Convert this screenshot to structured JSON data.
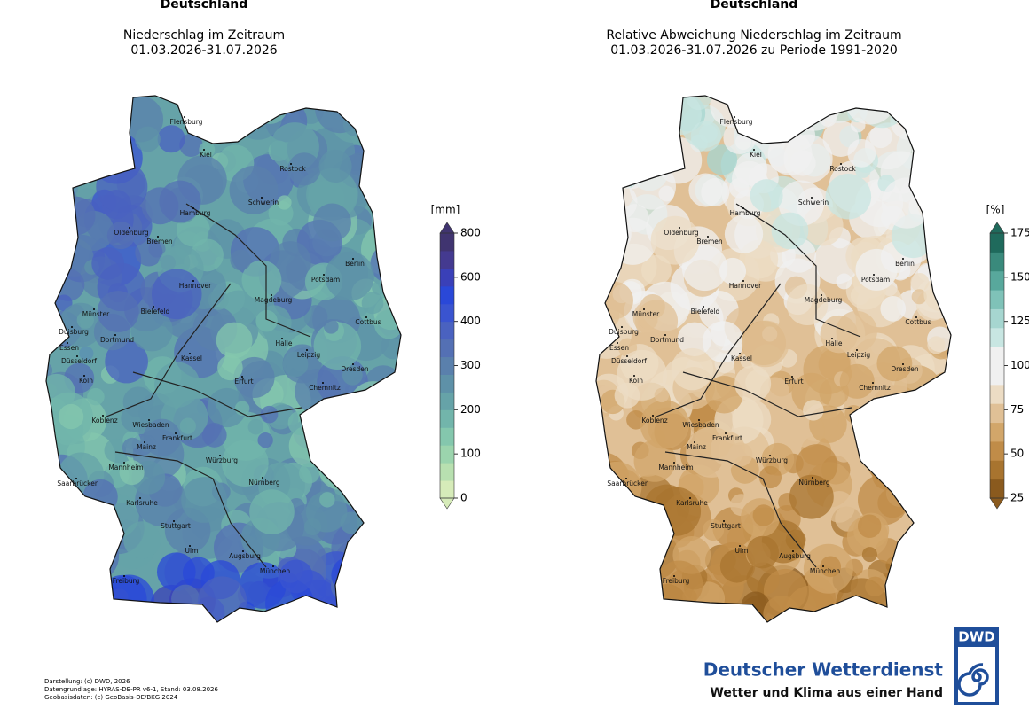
{
  "panels": [
    {
      "title": "Deutschland",
      "subtitle": [
        "Niederschlag im Zeitraum",
        "01.03.2026-31.07.2026"
      ],
      "colorbar": {
        "unit": "[mm]",
        "ticks": [
          0,
          100,
          200,
          300,
          400,
          600,
          800
        ],
        "colors": [
          "#d6ebb9",
          "#b8e0b0",
          "#9bd4ad",
          "#84c7ad",
          "#72b5ab",
          "#66a3a8",
          "#5e91a8",
          "#5a80ac",
          "#5470b4",
          "#4a62c0",
          "#3a54d0",
          "#2a48d8",
          "#3a40b8",
          "#443a90",
          "#403470"
        ]
      }
    },
    {
      "title": "Deutschland",
      "subtitle": [
        "Relative Abweichung Niederschlag im Zeitraum",
        "01.03.2026-31.07.2026 zu Periode 1991-2020"
      ],
      "colorbar": {
        "unit": "[%]",
        "ticks": [
          25,
          50,
          75,
          100,
          125,
          150,
          175
        ],
        "colors": [
          "#8a5a1e",
          "#a8742f",
          "#c08c48",
          "#d2a66a",
          "#e0c096",
          "#ecdcc4",
          "#f0f0f0",
          "#f0f0f0",
          "#c8e6e2",
          "#a6d6d0",
          "#7fc2b8",
          "#58a89c",
          "#3a8a7c",
          "#1f6a5c"
        ]
      }
    }
  ],
  "cities": [
    "Flensburg",
    "Kiel",
    "Rostock",
    "Hamburg",
    "Schwerin",
    "Oldenburg",
    "Bremen",
    "Berlin",
    "Potsdam",
    "Hannover",
    "Magdeburg",
    "Münster",
    "Bielefeld",
    "Duisburg",
    "Dortmund",
    "Essen",
    "Düsseldorf",
    "Halle",
    "Leipzig",
    "Cottbus",
    "Kassel",
    "Dresden",
    "Köln",
    "Erfurt",
    "Chemnitz",
    "Koblenz",
    "Wiesbaden",
    "Frankfurt",
    "Mainz",
    "Würzburg",
    "Mannheim",
    "Saarbrücken",
    "Nürnberg",
    "Karlsruhe",
    "Stuttgart",
    "Ulm",
    "Augsburg",
    "München",
    "Freiburg"
  ],
  "footer": [
    "Darstellung: (c) DWD, 2026",
    "Datengrundlage: HYRAS-DE-PR v6-1, Stand: 03.08.2026",
    "Geobasisdaten: (c) GeoBasis-DE/BKG 2024"
  ],
  "logo": {
    "abbr": "DWD",
    "name": "Deutscher Wetterdienst",
    "slogan": "Wetter und Klima aus einer Hand"
  }
}
